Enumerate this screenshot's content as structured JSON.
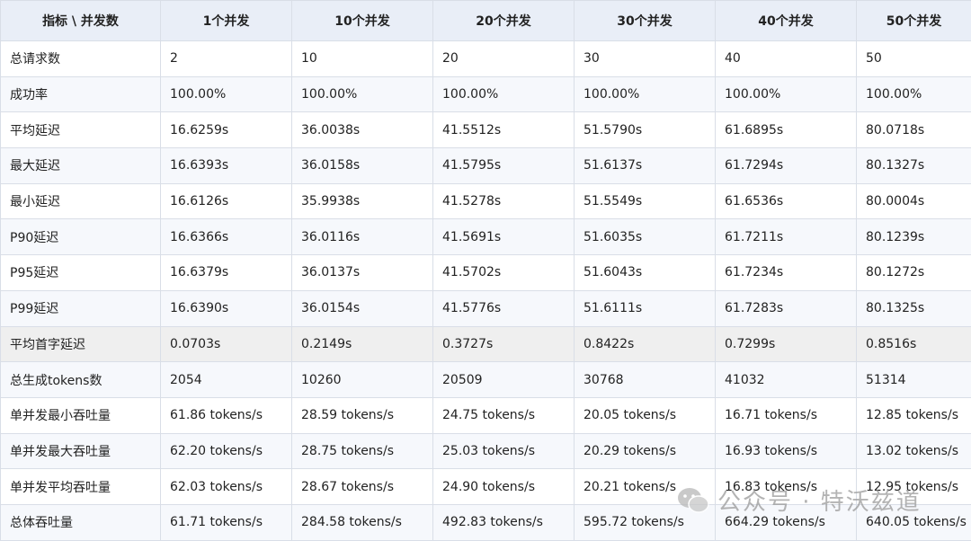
{
  "table": {
    "header": [
      "指标 \\ 并发数",
      "1个并发",
      "10个并发",
      "20个并发",
      "30个并发",
      "40个并发",
      "50个并发"
    ],
    "rows": [
      [
        "总请求数",
        "2",
        "10",
        "20",
        "30",
        "40",
        "50"
      ],
      [
        "成功率",
        "100.00%",
        "100.00%",
        "100.00%",
        "100.00%",
        "100.00%",
        "100.00%"
      ],
      [
        "平均延迟",
        "16.6259s",
        "36.0038s",
        "41.5512s",
        "51.5790s",
        "61.6895s",
        "80.0718s"
      ],
      [
        "最大延迟",
        "16.6393s",
        "36.0158s",
        "41.5795s",
        "51.6137s",
        "61.7294s",
        "80.1327s"
      ],
      [
        "最小延迟",
        "16.6126s",
        "35.9938s",
        "41.5278s",
        "51.5549s",
        "61.6536s",
        "80.0004s"
      ],
      [
        "P90延迟",
        "16.6366s",
        "36.0116s",
        "41.5691s",
        "51.6035s",
        "61.7211s",
        "80.1239s"
      ],
      [
        "P95延迟",
        "16.6379s",
        "36.0137s",
        "41.5702s",
        "51.6043s",
        "61.7234s",
        "80.1272s"
      ],
      [
        "P99延迟",
        "16.6390s",
        "36.0154s",
        "41.5776s",
        "51.6111s",
        "61.7283s",
        "80.1325s"
      ],
      [
        "平均首字延迟",
        "0.0703s",
        "0.2149s",
        "0.3727s",
        "0.8422s",
        "0.7299s",
        "0.8516s"
      ],
      [
        "总生成tokens数",
        "2054",
        "10260",
        "20509",
        "30768",
        "41032",
        "51314"
      ],
      [
        "单并发最小吞吐量",
        "61.86 tokens/s",
        "28.59 tokens/s",
        "24.75 tokens/s",
        "20.05 tokens/s",
        "16.71 tokens/s",
        "12.85 tokens/s"
      ],
      [
        "单并发最大吞吐量",
        "62.20 tokens/s",
        "28.75 tokens/s",
        "25.03 tokens/s",
        "20.29 tokens/s",
        "16.93 tokens/s",
        "13.02 tokens/s"
      ],
      [
        "单并发平均吞吐量",
        "62.03 tokens/s",
        "28.67 tokens/s",
        "24.90 tokens/s",
        "20.21 tokens/s",
        "16.83 tokens/s",
        "12.95 tokens/s"
      ],
      [
        "总体吞吐量",
        "61.71 tokens/s",
        "284.58 tokens/s",
        "492.83 tokens/s",
        "595.72 tokens/s",
        "664.29 tokens/s",
        "640.05 tokens/s"
      ]
    ]
  },
  "watermark": "公众号 · 特沃兹道"
}
